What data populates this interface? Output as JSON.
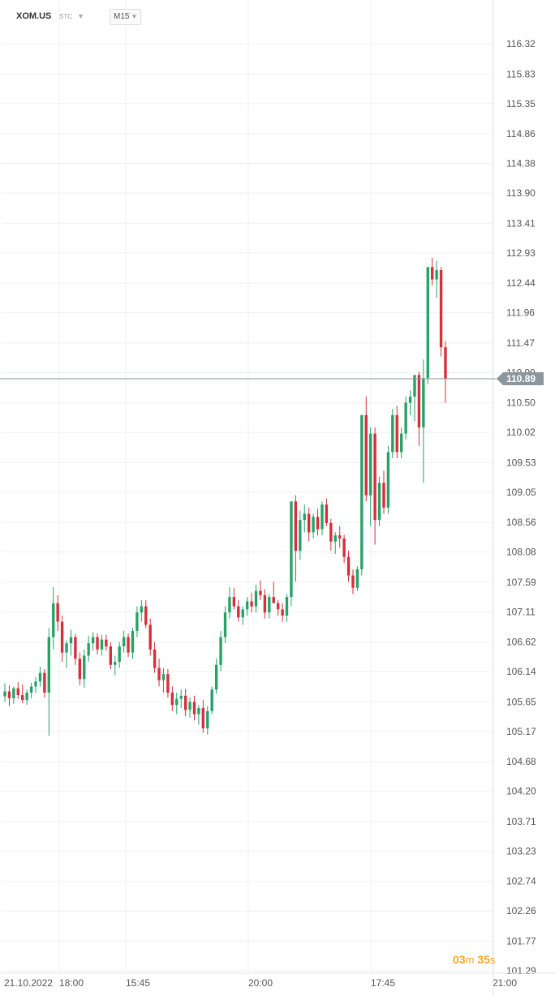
{
  "header": {
    "symbol": "XOM.US",
    "market_type": "STC",
    "timeframe": "M15"
  },
  "timer": {
    "minutes": "03",
    "minutes_unit": "m",
    "seconds": "35",
    "seconds_unit": "s"
  },
  "colors": {
    "up": "#26a269",
    "down": "#d62e3a",
    "price_line": "#8c969c",
    "price_tag_bg": "#8c969c",
    "timer": "#f5a623",
    "grid": "#f0f0f0"
  },
  "chart_data": {
    "type": "candlestick",
    "y_ticks": [
      "116.32",
      "115.83",
      "115.35",
      "114.86",
      "114.38",
      "113.90",
      "113.41",
      "112.93",
      "112.44",
      "111.96",
      "111.47",
      "110.99",
      "110.50",
      "110.02",
      "109.53",
      "109.05",
      "108.56",
      "108.08",
      "107.59",
      "107.11",
      "106.62",
      "106.14",
      "105.65",
      "105.17",
      "104.68",
      "104.20",
      "103.71",
      "103.23",
      "102.74",
      "102.26",
      "101.77",
      "101.29"
    ],
    "ylim": [
      101.29,
      116.32
    ],
    "x_ticks": [
      "21.10.2022",
      "18:00",
      "15:45",
      "20:00",
      "17:45",
      "21:00"
    ],
    "current_price": 110.89,
    "current_price_label": "110.89",
    "grid": true,
    "candles": [
      [
        105.74,
        105.95,
        105.65,
        105.82
      ],
      [
        105.82,
        105.92,
        105.58,
        105.71
      ],
      [
        105.71,
        105.9,
        105.62,
        105.87
      ],
      [
        105.87,
        105.97,
        105.7,
        105.76
      ],
      [
        105.76,
        105.93,
        105.63,
        105.68
      ],
      [
        105.68,
        105.85,
        105.6,
        105.8
      ],
      [
        105.8,
        105.96,
        105.71,
        105.9
      ],
      [
        105.9,
        106.05,
        105.8,
        105.98
      ],
      [
        105.98,
        106.22,
        105.9,
        106.12
      ],
      [
        106.12,
        106.18,
        105.72,
        105.8
      ],
      [
        105.8,
        106.85,
        105.1,
        106.7
      ],
      [
        106.7,
        107.51,
        106.5,
        107.25
      ],
      [
        107.25,
        107.38,
        106.8,
        106.95
      ],
      [
        106.95,
        107.05,
        106.3,
        106.45
      ],
      [
        106.45,
        106.65,
        106.2,
        106.6
      ],
      [
        106.6,
        106.82,
        106.4,
        106.7
      ],
      [
        106.7,
        106.75,
        106.25,
        106.35
      ],
      [
        106.35,
        106.45,
        105.92,
        106.02
      ],
      [
        106.02,
        106.5,
        105.88,
        106.4
      ],
      [
        106.4,
        106.72,
        106.3,
        106.6
      ],
      [
        106.6,
        106.78,
        106.48,
        106.7
      ],
      [
        106.7,
        106.76,
        106.42,
        106.5
      ],
      [
        106.5,
        106.74,
        106.4,
        106.66
      ],
      [
        106.66,
        106.74,
        106.48,
        106.55
      ],
      [
        106.55,
        106.62,
        106.18,
        106.25
      ],
      [
        106.25,
        106.4,
        106.08,
        106.3
      ],
      [
        106.3,
        106.62,
        106.2,
        106.55
      ],
      [
        106.55,
        106.8,
        106.45,
        106.7
      ],
      [
        106.7,
        106.76,
        106.38,
        106.45
      ],
      [
        106.45,
        106.85,
        106.35,
        106.8
      ],
      [
        106.8,
        107.2,
        106.7,
        107.1
      ],
      [
        107.1,
        107.3,
        106.95,
        107.2
      ],
      [
        107.2,
        107.3,
        106.85,
        106.9
      ],
      [
        106.9,
        107.0,
        106.4,
        106.5
      ],
      [
        106.5,
        106.62,
        106.12,
        106.2
      ],
      [
        106.2,
        106.35,
        105.9,
        106.0
      ],
      [
        106.0,
        106.2,
        105.8,
        106.1
      ],
      [
        106.1,
        106.18,
        105.72,
        105.8
      ],
      [
        105.8,
        105.9,
        105.5,
        105.6
      ],
      [
        105.6,
        105.8,
        105.45,
        105.7
      ],
      [
        105.7,
        105.85,
        105.55,
        105.75
      ],
      [
        105.75,
        105.86,
        105.42,
        105.52
      ],
      [
        105.52,
        105.72,
        105.4,
        105.65
      ],
      [
        105.65,
        105.75,
        105.35,
        105.45
      ],
      [
        105.45,
        105.6,
        105.28,
        105.55
      ],
      [
        105.55,
        105.68,
        105.15,
        105.22
      ],
      [
        105.22,
        105.58,
        105.12,
        105.5
      ],
      [
        105.5,
        105.9,
        105.45,
        105.85
      ],
      [
        105.85,
        106.35,
        105.78,
        106.25
      ],
      [
        106.25,
        106.8,
        106.15,
        106.7
      ],
      [
        106.7,
        107.2,
        106.6,
        107.1
      ],
      [
        107.1,
        107.51,
        107.0,
        107.35
      ],
      [
        107.35,
        107.5,
        107.15,
        107.2
      ],
      [
        107.2,
        107.3,
        106.95,
        107.02
      ],
      [
        107.02,
        107.2,
        106.9,
        107.15
      ],
      [
        107.15,
        107.35,
        107.05,
        107.28
      ],
      [
        107.28,
        107.42,
        107.1,
        107.2
      ],
      [
        107.2,
        107.55,
        107.1,
        107.45
      ],
      [
        107.45,
        107.62,
        107.3,
        107.38
      ],
      [
        107.38,
        107.48,
        107.0,
        107.1
      ],
      [
        107.1,
        107.4,
        107.0,
        107.35
      ],
      [
        107.35,
        107.6,
        107.25,
        107.25
      ],
      [
        107.25,
        107.3,
        107.05,
        107.15
      ],
      [
        107.15,
        107.25,
        106.95,
        107.05
      ],
      [
        107.05,
        107.4,
        106.95,
        107.35
      ],
      [
        107.35,
        108.9,
        107.2,
        108.9
      ],
      [
        108.9,
        109.0,
        107.6,
        108.1
      ],
      [
        108.1,
        108.75,
        107.95,
        108.6
      ],
      [
        108.6,
        108.85,
        108.4,
        108.7
      ],
      [
        108.7,
        108.8,
        108.25,
        108.4
      ],
      [
        108.4,
        108.7,
        108.3,
        108.65
      ],
      [
        108.65,
        108.78,
        108.35,
        108.45
      ],
      [
        108.45,
        108.9,
        108.35,
        108.85
      ],
      [
        108.85,
        108.95,
        108.5,
        108.55
      ],
      [
        108.55,
        108.62,
        108.1,
        108.25
      ],
      [
        108.25,
        108.4,
        108.05,
        108.35
      ],
      [
        108.35,
        108.5,
        108.15,
        108.3
      ],
      [
        108.3,
        108.36,
        107.9,
        108.0
      ],
      [
        108.0,
        108.1,
        107.6,
        107.7
      ],
      [
        107.7,
        107.8,
        107.4,
        107.5
      ],
      [
        107.5,
        107.85,
        107.45,
        107.8
      ],
      [
        107.8,
        110.3,
        107.7,
        110.3
      ],
      [
        110.3,
        110.6,
        108.9,
        109.0
      ],
      [
        109.0,
        110.1,
        108.5,
        110.0
      ],
      [
        110.0,
        110.1,
        108.2,
        108.6
      ],
      [
        108.6,
        109.3,
        108.5,
        109.2
      ],
      [
        109.2,
        109.4,
        108.7,
        108.8
      ],
      [
        108.8,
        109.8,
        108.7,
        109.7
      ],
      [
        109.7,
        110.4,
        109.6,
        110.3
      ],
      [
        110.3,
        110.45,
        109.6,
        109.7
      ],
      [
        109.7,
        110.1,
        109.6,
        110.0
      ],
      [
        110.0,
        110.6,
        109.9,
        110.5
      ],
      [
        110.5,
        110.7,
        110.3,
        110.6
      ],
      [
        110.6,
        110.95,
        110.2,
        110.95
      ],
      [
        110.95,
        111.0,
        109.8,
        110.1
      ],
      [
        110.1,
        111.2,
        109.2,
        110.9
      ],
      [
        110.9,
        112.7,
        110.8,
        112.7
      ],
      [
        112.7,
        112.85,
        112.4,
        112.5
      ],
      [
        112.5,
        112.8,
        112.2,
        112.65
      ],
      [
        112.65,
        112.7,
        111.25,
        111.4
      ],
      [
        111.4,
        111.5,
        110.5,
        110.89
      ]
    ]
  }
}
